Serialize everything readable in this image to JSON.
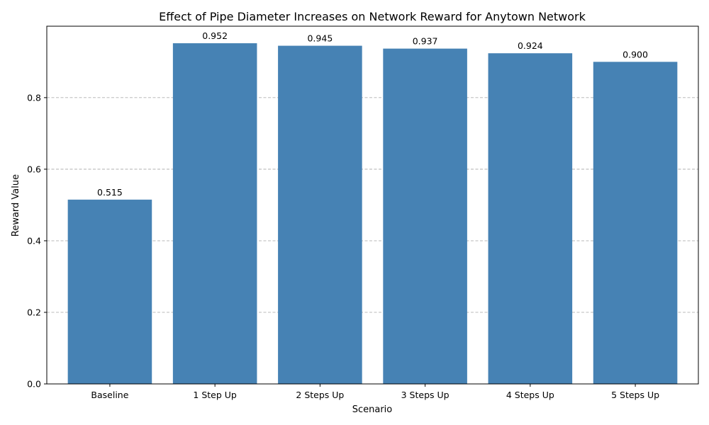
{
  "chart_data": {
    "type": "bar",
    "title": "Effect of Pipe Diameter Increases on Network Reward for Anytown Network",
    "xlabel": "Scenario",
    "ylabel": "Reward Value",
    "categories": [
      "Baseline",
      "1 Step Up",
      "2 Steps Up",
      "3 Steps Up",
      "4 Steps Up",
      "5 Steps Up"
    ],
    "values": [
      0.515,
      0.952,
      0.945,
      0.937,
      0.924,
      0.9
    ],
    "data_labels": [
      "0.515",
      "0.952",
      "0.945",
      "0.937",
      "0.924",
      "0.900"
    ],
    "ylim": [
      0,
      0.9996
    ],
    "yticks": [
      0.0,
      0.2,
      0.4,
      0.6,
      0.8
    ],
    "ytick_labels": [
      "0.0",
      "0.2",
      "0.4",
      "0.6",
      "0.8"
    ],
    "grid": "y-dashed",
    "bar_color": "#4682b4"
  }
}
